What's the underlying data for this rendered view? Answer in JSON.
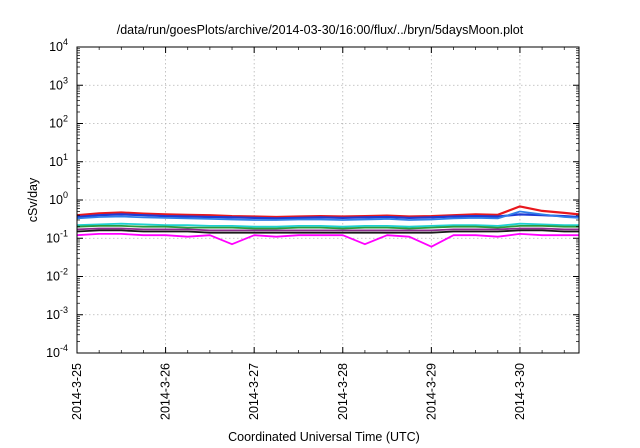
{
  "chart_data": {
    "type": "line",
    "title": "/data/run/goesPlots/archive/2014-03-30/16:00/flux/../bryn/5daysMoon.plot",
    "xlabel": "Coordinated Universal Time (UTC)",
    "ylabel": "cSv/day",
    "yscale": "log",
    "ylim": [
      0.0001,
      10000
    ],
    "xlim": [
      "2014-03-25",
      "2014-03-30 16:00"
    ],
    "x_ticks": [
      "2014-3-25",
      "2014-3-26",
      "2014-3-27",
      "2014-3-28",
      "2014-3-29",
      "2014-3-30"
    ],
    "y_ticks": [
      {
        "base": "10",
        "exp": "-4",
        "value": 0.0001
      },
      {
        "base": "10",
        "exp": "-3",
        "value": 0.001
      },
      {
        "base": "10",
        "exp": "-2",
        "value": 0.01
      },
      {
        "base": "10",
        "exp": "-1",
        "value": 0.1
      },
      {
        "base": "10",
        "exp": "0",
        "value": 1
      },
      {
        "base": "10",
        "exp": "1",
        "value": 10
      },
      {
        "base": "10",
        "exp": "2",
        "value": 100
      },
      {
        "base": "10",
        "exp": "3",
        "value": 1000
      },
      {
        "base": "10",
        "exp": "4",
        "value": 10000
      }
    ],
    "grid": true,
    "x": [
      "2014-03-25 00:00",
      "2014-03-25 06:00",
      "2014-03-25 12:00",
      "2014-03-25 18:00",
      "2014-03-26 00:00",
      "2014-03-26 06:00",
      "2014-03-26 12:00",
      "2014-03-26 18:00",
      "2014-03-27 00:00",
      "2014-03-27 06:00",
      "2014-03-27 12:00",
      "2014-03-27 18:00",
      "2014-03-28 00:00",
      "2014-03-28 06:00",
      "2014-03-28 12:00",
      "2014-03-28 18:00",
      "2014-03-29 00:00",
      "2014-03-29 06:00",
      "2014-03-29 12:00",
      "2014-03-29 18:00",
      "2014-03-30 00:00",
      "2014-03-30 06:00",
      "2014-03-30 12:00",
      "2014-03-30 16:00"
    ],
    "series": [
      {
        "color": "#e8171d",
        "values": [
          0.4,
          0.45,
          0.47,
          0.44,
          0.42,
          0.41,
          0.4,
          0.38,
          0.37,
          0.36,
          0.37,
          0.38,
          0.37,
          0.38,
          0.39,
          0.37,
          0.38,
          0.4,
          0.42,
          0.41,
          0.68,
          0.52,
          0.46,
          0.42
        ]
      },
      {
        "color": "#1f3bd4",
        "values": [
          0.36,
          0.4,
          0.42,
          0.4,
          0.38,
          0.37,
          0.36,
          0.35,
          0.34,
          0.33,
          0.34,
          0.35,
          0.34,
          0.35,
          0.36,
          0.34,
          0.35,
          0.37,
          0.38,
          0.37,
          0.42,
          0.4,
          0.38,
          0.36
        ]
      },
      {
        "color": "#2f7fe8",
        "values": [
          0.33,
          0.36,
          0.37,
          0.35,
          0.34,
          0.33,
          0.32,
          0.31,
          0.3,
          0.3,
          0.31,
          0.31,
          0.3,
          0.31,
          0.32,
          0.3,
          0.31,
          0.33,
          0.34,
          0.33,
          0.5,
          0.42,
          0.36,
          0.34
        ]
      },
      {
        "color": "#1fd0d0",
        "values": [
          0.22,
          0.23,
          0.24,
          0.23,
          0.22,
          0.22,
          0.21,
          0.21,
          0.2,
          0.2,
          0.21,
          0.21,
          0.2,
          0.21,
          0.21,
          0.2,
          0.21,
          0.22,
          0.22,
          0.21,
          0.24,
          0.23,
          0.22,
          0.22
        ]
      },
      {
        "color": "#2a9a3c",
        "values": [
          0.2,
          0.21,
          0.21,
          0.2,
          0.2,
          0.19,
          0.19,
          0.19,
          0.18,
          0.18,
          0.19,
          0.19,
          0.18,
          0.19,
          0.19,
          0.18,
          0.19,
          0.2,
          0.2,
          0.19,
          0.21,
          0.21,
          0.2,
          0.2
        ]
      },
      {
        "color": "#8b2a8b",
        "values": [
          0.17,
          0.18,
          0.18,
          0.17,
          0.17,
          0.17,
          0.16,
          0.16,
          0.16,
          0.16,
          0.16,
          0.16,
          0.16,
          0.16,
          0.16,
          0.16,
          0.16,
          0.17,
          0.17,
          0.17,
          0.18,
          0.18,
          0.17,
          0.17
        ]
      },
      {
        "color": "#1a1a1a",
        "values": [
          0.15,
          0.16,
          0.16,
          0.15,
          0.15,
          0.15,
          0.14,
          0.14,
          0.14,
          0.14,
          0.14,
          0.14,
          0.14,
          0.14,
          0.14,
          0.14,
          0.14,
          0.15,
          0.15,
          0.15,
          0.16,
          0.16,
          0.15,
          0.15
        ]
      },
      {
        "color": "#ff00ff",
        "values": [
          0.12,
          0.13,
          0.13,
          0.12,
          0.12,
          0.11,
          0.12,
          0.07,
          0.12,
          0.11,
          0.12,
          0.12,
          0.12,
          0.07,
          0.12,
          0.11,
          0.06,
          0.12,
          0.12,
          0.11,
          0.13,
          0.12,
          0.12,
          0.12
        ]
      }
    ]
  }
}
